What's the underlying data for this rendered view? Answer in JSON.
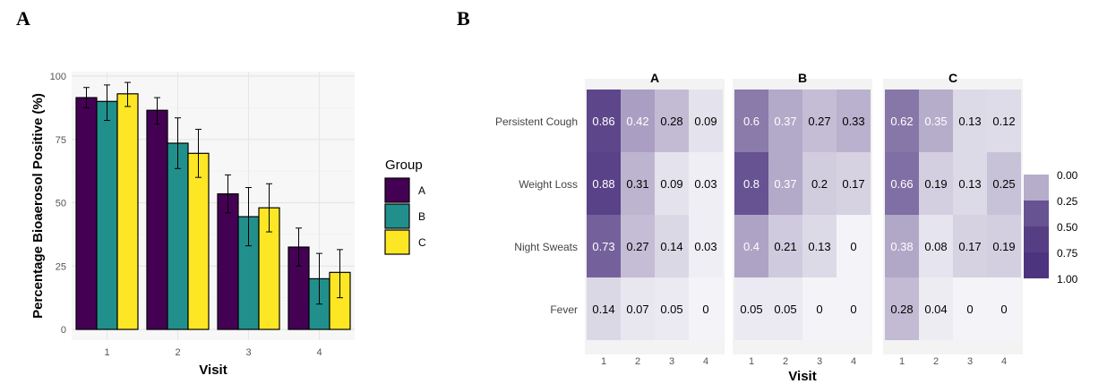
{
  "panels": {
    "left_letter": "A",
    "right_letter": "B"
  },
  "chart_data": [
    {
      "type": "bar",
      "title": "",
      "xlabel": "Visit",
      "ylabel": "Percentage Bioaerosol Positive (%)",
      "categories": [
        "1",
        "2",
        "3",
        "4"
      ],
      "ylim": [
        0,
        100
      ],
      "yticks": [
        "0",
        "25",
        "50",
        "75",
        "100"
      ],
      "grid": true,
      "legend": {
        "title": "Group",
        "placement": "right"
      },
      "series": [
        {
          "name": "A",
          "color": "#440154",
          "values": [
            91.5,
            86.5,
            53.5,
            32.5
          ],
          "err_low": [
            87.5,
            81,
            46,
            25
          ],
          "err_high": [
            95.5,
            91.5,
            61,
            40
          ]
        },
        {
          "name": "B",
          "color": "#21908C",
          "values": [
            90,
            73.5,
            44.5,
            20
          ],
          "err_low": [
            82.5,
            63.5,
            33,
            10
          ],
          "err_high": [
            96.5,
            83.5,
            56,
            30
          ]
        },
        {
          "name": "C",
          "color": "#FDE725",
          "values": [
            93,
            69.5,
            48,
            22.5
          ],
          "err_low": [
            88,
            60,
            38.5,
            12.5
          ],
          "err_high": [
            97.5,
            79,
            57.5,
            31.5
          ]
        }
      ]
    },
    {
      "type": "heatmap",
      "xlabel": "Visit",
      "x": [
        "1",
        "2",
        "3",
        "4"
      ],
      "y": [
        "Persistent Cough",
        "Weight Loss",
        "Night Sweats",
        "Fever"
      ],
      "facets": [
        {
          "title": "A",
          "values": [
            [
              0.86,
              0.42,
              0.28,
              0.09
            ],
            [
              0.88,
              0.31,
              0.09,
              0.03
            ],
            [
              0.73,
              0.27,
              0.14,
              0.03
            ],
            [
              0.14,
              0.07,
              0.05,
              0
            ]
          ]
        },
        {
          "title": "B",
          "values": [
            [
              0.6,
              0.37,
              0.27,
              0.33
            ],
            [
              0.8,
              0.37,
              0.2,
              0.17
            ],
            [
              0.4,
              0.21,
              0.13,
              0
            ],
            [
              0.05,
              0.05,
              0,
              0
            ]
          ]
        },
        {
          "title": "C",
          "values": [
            [
              0.62,
              0.35,
              0.13,
              0.12
            ],
            [
              0.66,
              0.19,
              0.13,
              0.25
            ],
            [
              0.38,
              0.08,
              0.17,
              0.19
            ],
            [
              0.28,
              0.04,
              0,
              0
            ]
          ]
        }
      ],
      "legend": {
        "placement": "right",
        "labels": [
          "0.00",
          "0.25",
          "0.50",
          "0.75",
          "1.00"
        ]
      },
      "colors": {
        "low": "#f4f4f8",
        "high": "#442a78",
        "light_text": "#ffffff",
        "dark_text": "#000000"
      }
    }
  ]
}
